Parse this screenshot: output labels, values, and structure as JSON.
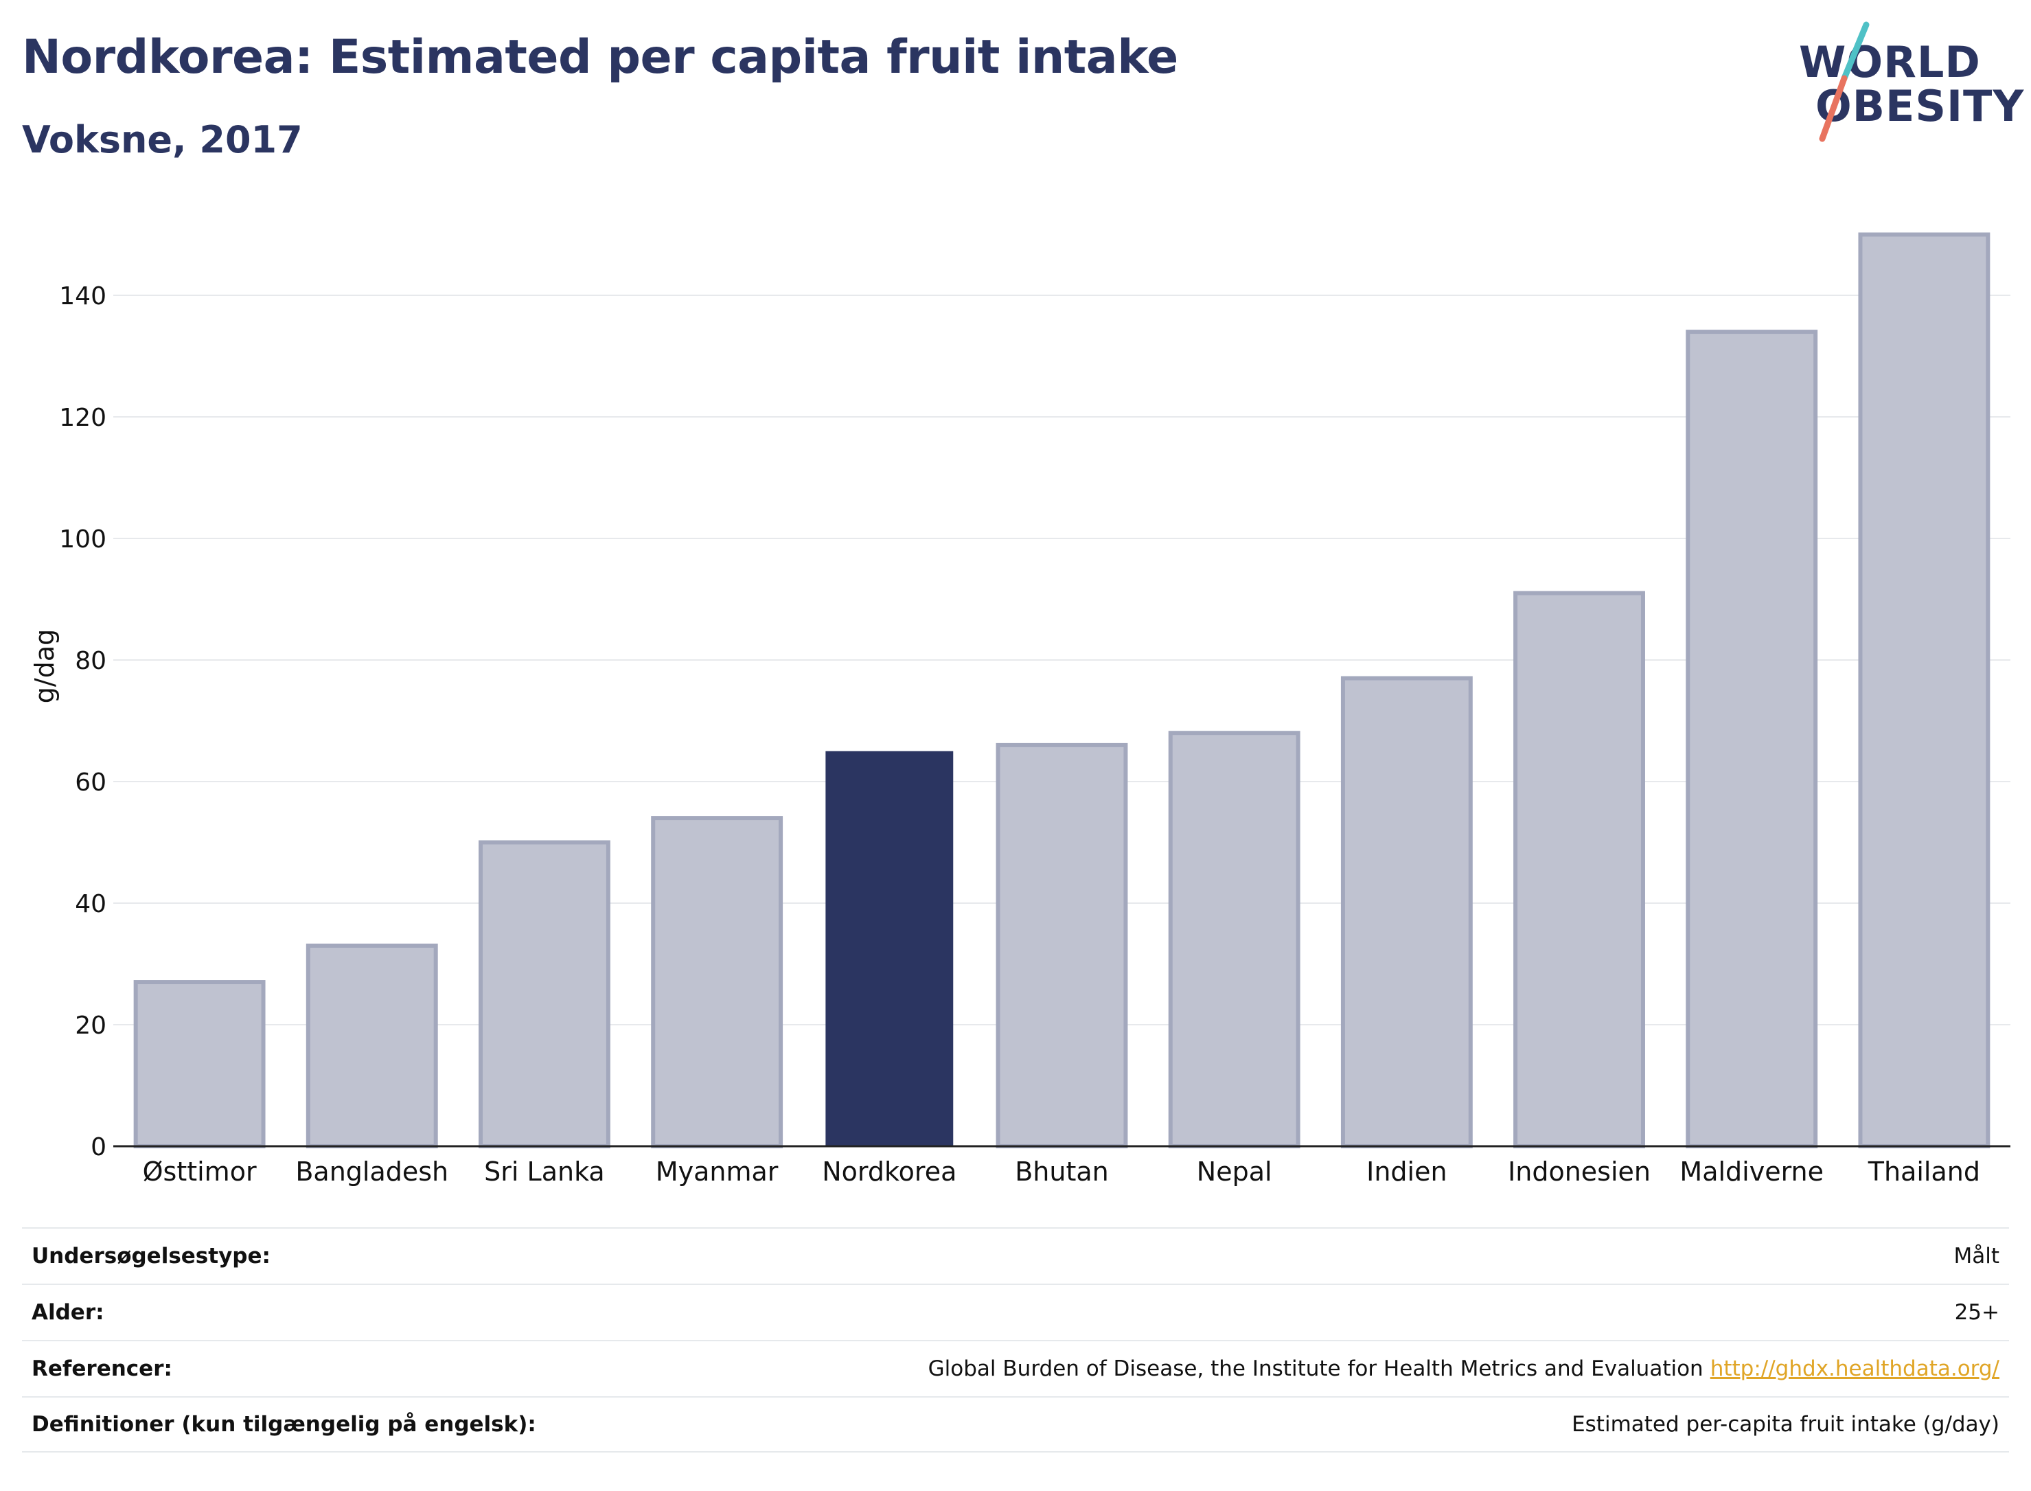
{
  "header": {
    "title": "Nordkorea: Estimated per capita fruit intake",
    "subtitle": "Voksne, 2017"
  },
  "logo": {
    "line1": "WORLD",
    "line2": "OBESITY",
    "accent_colors": [
      "#4fc1c6",
      "#e8735f"
    ]
  },
  "colors": {
    "highlight": "#2b3561",
    "bar": "#bfc2d0",
    "bar_edge": "#a3a8bd",
    "grid": "#e7e9ec"
  },
  "chart_data": {
    "type": "bar",
    "title": "Nordkorea: Estimated per capita fruit intake",
    "subtitle": "Voksne, 2017",
    "ylabel": "g/dag",
    "xlabel": "",
    "categories": [
      "Østtimor",
      "Bangladesh",
      "Sri Lanka",
      "Myanmar",
      "Nordkorea",
      "Bhutan",
      "Nepal",
      "Indien",
      "Indonesien",
      "Maldiverne",
      "Thailand"
    ],
    "values": [
      27,
      33,
      50,
      54,
      65,
      66,
      68,
      77,
      91,
      134,
      150
    ],
    "highlight": "Nordkorea",
    "ylim": [
      0,
      150
    ],
    "yticks": [
      0,
      20,
      40,
      60,
      80,
      100,
      120,
      140
    ],
    "grid": true,
    "legend": "none"
  },
  "meta": {
    "rows": [
      {
        "key": "Undersøgelsestype:",
        "value": "Målt",
        "link": ""
      },
      {
        "key": "Alder:",
        "value": "25+",
        "link": ""
      },
      {
        "key": "Referencer:",
        "value": "Global Burden of Disease, the Institute for Health Metrics and Evaluation",
        "link": "http://ghdx.healthdata.org/"
      },
      {
        "key": "Definitioner (kun tilgængelig på engelsk):",
        "value": "Estimated per-capita fruit intake (g/day)",
        "link": ""
      }
    ]
  }
}
